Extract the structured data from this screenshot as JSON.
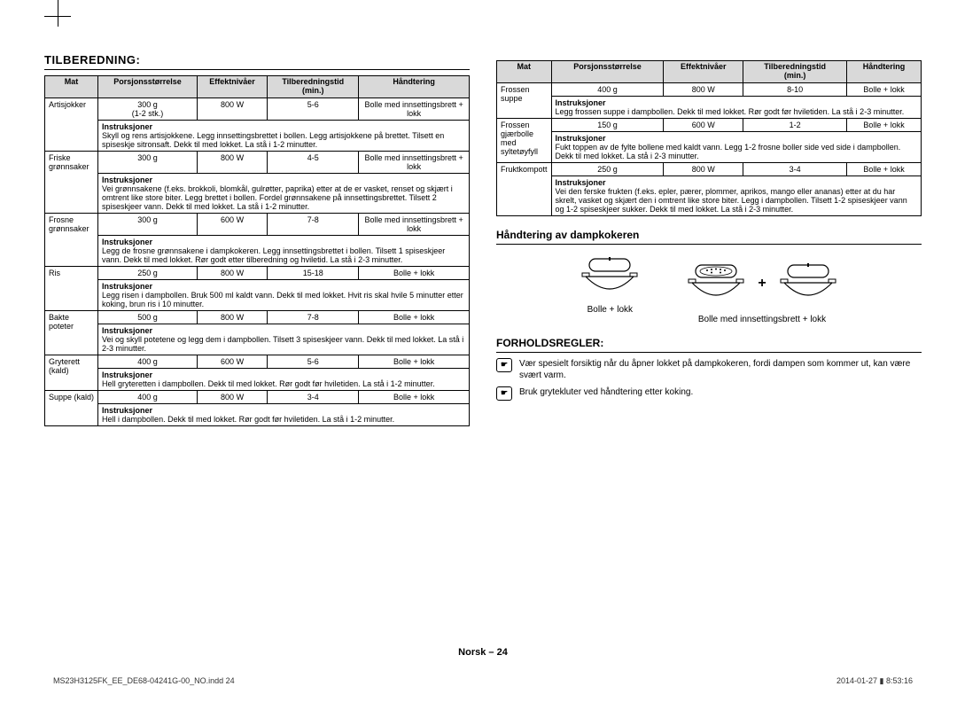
{
  "title": "TILBEREDNING:",
  "headers": {
    "mat": "Mat",
    "portion": "Porsjonsstørrelse",
    "power": "Effektnivåer",
    "time": "Tilberedningstid (min.)",
    "handling": "Håndtering"
  },
  "instr_label": "Instruksjoner",
  "table1": [
    {
      "food": "Artisjokker",
      "portion": "300 g\n(1-2 stk.)",
      "power": "800 W",
      "time": "5-6",
      "handling": "Bolle med innsettingsbrett + lokk",
      "instr": "Skyll og rens artisjokkene. Legg innsettingsbrettet i bollen. Legg artisjokkene på brettet. Tilsett en spiseskje sitronsaft. Dekk til med lokket. La stå i 1-2 minutter."
    },
    {
      "food": "Friske\ngrønnsaker",
      "portion": "300 g",
      "power": "800 W",
      "time": "4-5",
      "handling": "Bolle med innsettingsbrett + lokk",
      "instr": "Vei grønnsakene (f.eks. brokkoli, blomkål, gulrøtter, paprika) etter at de er vasket, renset og skjært i omtrent like store biter. Legg brettet i bollen. Fordel grønnsakene på innsettingsbrettet. Tilsett 2 spiseskjeer vann. Dekk til med lokket. La stå i 1-2 minutter."
    },
    {
      "food": "Frosne\ngrønnsaker",
      "portion": "300 g",
      "power": "600 W",
      "time": "7-8",
      "handling": "Bolle med innsettingsbrett + lokk",
      "instr": "Legg de frosne grønnsakene i dampkokeren. Legg innsettingsbrettet i bollen. Tilsett 1 spiseskjeer vann. Dekk til med lokket. Rør godt etter tilberedning og hviletid. La stå i 2-3 minutter."
    },
    {
      "food": "Ris",
      "portion": "250 g",
      "power": "800 W",
      "time": "15-18",
      "handling": "Bolle + lokk",
      "instr": "Legg risen i dampbollen. Bruk 500 ml kaldt vann. Dekk til med lokket. Hvit ris skal hvile 5 minutter etter koking, brun ris i 10 minutter."
    },
    {
      "food": "Bakte\npoteter",
      "portion": "500 g",
      "power": "800 W",
      "time": "7-8",
      "handling": "Bolle + lokk",
      "instr": "Vei og skyll potetene og legg dem i dampbollen. Tilsett 3 spiseskjeer vann. Dekk til med lokket. La stå i 2-3 minutter."
    },
    {
      "food": "Gryterett\n(kald)",
      "portion": "400 g",
      "power": "600 W",
      "time": "5-6",
      "handling": "Bolle + lokk",
      "instr": "Hell gryteretten i dampbollen. Dekk til med lokket. Rør godt før hviletiden. La stå i 1-2 minutter."
    },
    {
      "food": "Suppe (kald)",
      "portion": "400 g",
      "power": "800 W",
      "time": "3-4",
      "handling": "Bolle + lokk",
      "instr": "Hell i dampbollen. Dekk til med lokket. Rør godt før hviletiden. La stå i 1-2 minutter."
    }
  ],
  "table2": [
    {
      "food": "Frossen\nsuppe",
      "portion": "400 g",
      "power": "800 W",
      "time": "8-10",
      "handling": "Bolle + lokk",
      "instr": "Legg frossen suppe i dampbollen. Dekk til med lokket. Rør godt før hviletiden. La stå i 2-3 minutter."
    },
    {
      "food": "Frossen\ngjærbolle\nmed\nsyltetøyfyll",
      "portion": "150 g",
      "power": "600 W",
      "time": "1-2",
      "handling": "Bolle + lokk",
      "instr": "Fukt toppen av de fylte bollene med kaldt vann. Legg 1-2 frosne boller side ved side i dampbollen. Dekk til med lokket. La stå i 2-3 minutter."
    },
    {
      "food": "Fruktkompott",
      "portion": "250 g",
      "power": "800 W",
      "time": "3-4",
      "handling": "Bolle + lokk",
      "instr": "Vei den ferske frukten (f.eks. epler, pærer, plommer, aprikos, mango eller ananas) etter at du har skrelt, vasket og skjært den i omtrent like store biter. Legg i dampbollen. Tilsett 1-2 spiseskjeer vann og 1-2 spiseskjeer sukker. Dekk til med lokket. La stå i 2-3 minutter."
    }
  ],
  "subsection1": "Håndtering av dampkokeren",
  "diagram": {
    "left": "Bolle + lokk",
    "right": "Bolle med innsettingsbrett + lokk",
    "plus": "+"
  },
  "subsection2": "FORHOLDSREGLER:",
  "precautions": [
    "Vær spesielt forsiktig når du åpner lokket på dampkokeren, fordi dampen som kommer ut, kan være svært varm.",
    "Bruk grytekluter ved håndtering etter koking."
  ],
  "footer": "Norsk – 24",
  "meta": {
    "file": "MS23H3125FK_EE_DE68-04241G-00_NO.indd   24",
    "date": "2014-01-27   ▮ 8:53:16"
  }
}
